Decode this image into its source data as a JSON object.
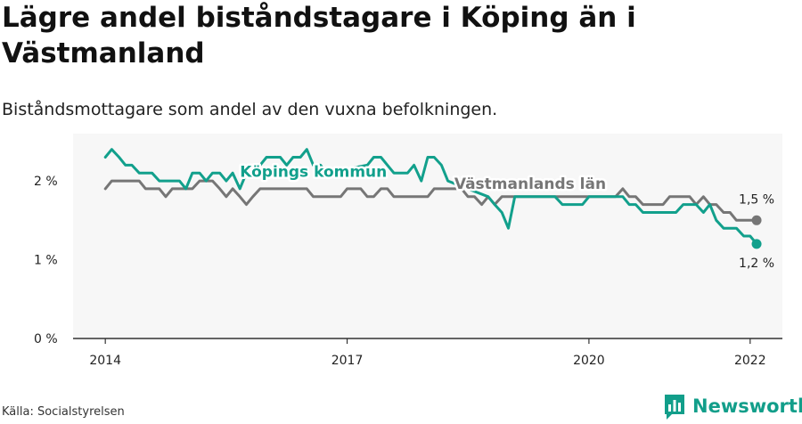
{
  "header": {
    "title": "Lägre andel biståndstagare i Köping än i Västmanland",
    "subtitle": "Biståndsmottagare som andel av den vuxna befolkningen."
  },
  "footer": {
    "source": "Källa: Socialstyrelsen",
    "brand": "Newsworthy"
  },
  "colors": {
    "koping": "#12a08c",
    "vastmanland": "#767676",
    "axis": "#333333",
    "plot_bg": "#f7f7f7",
    "brand": "#129e8a"
  },
  "chart_data": {
    "type": "line",
    "xlabel": "",
    "ylabel": "",
    "x_ticks": [
      {
        "value": 2014,
        "label": "2014"
      },
      {
        "value": 2017,
        "label": "2017"
      },
      {
        "value": 2020,
        "label": "2020"
      },
      {
        "value": 2022,
        "label": "2022"
      }
    ],
    "y_ticks": [
      {
        "value": 0,
        "label": "0 %"
      },
      {
        "value": 1,
        "label": "1 %"
      },
      {
        "value": 2,
        "label": "2 %"
      }
    ],
    "xlim": [
      2013.6,
      2022.4
    ],
    "ylim": [
      0,
      2.6
    ],
    "grid": false,
    "legend": "direct labels on lines",
    "series": [
      {
        "name": "Köpings kommun",
        "color": "#12a08c",
        "end_label": "1,2 %",
        "points": [
          [
            2014.0,
            2.3
          ],
          [
            2014.08,
            2.4
          ],
          [
            2014.17,
            2.3
          ],
          [
            2014.25,
            2.2
          ],
          [
            2014.33,
            2.2
          ],
          [
            2014.42,
            2.1
          ],
          [
            2014.5,
            2.1
          ],
          [
            2014.58,
            2.1
          ],
          [
            2014.67,
            2.0
          ],
          [
            2014.75,
            2.0
          ],
          [
            2014.83,
            2.0
          ],
          [
            2014.92,
            2.0
          ],
          [
            2015.0,
            1.9
          ],
          [
            2015.08,
            2.1
          ],
          [
            2015.17,
            2.1
          ],
          [
            2015.25,
            2.0
          ],
          [
            2015.33,
            2.1
          ],
          [
            2015.42,
            2.1
          ],
          [
            2015.5,
            2.0
          ],
          [
            2015.58,
            2.1
          ],
          [
            2015.67,
            1.9
          ],
          [
            2015.75,
            2.1
          ],
          [
            2015.83,
            2.1
          ],
          [
            2015.92,
            2.2
          ],
          [
            2016.0,
            2.3
          ],
          [
            2016.08,
            2.3
          ],
          [
            2016.17,
            2.3
          ],
          [
            2016.25,
            2.2
          ],
          [
            2016.33,
            2.3
          ],
          [
            2016.42,
            2.3
          ],
          [
            2016.5,
            2.4
          ],
          [
            2016.58,
            2.2
          ],
          [
            2016.67,
            2.2
          ],
          [
            2016.75,
            2.1
          ],
          [
            2017.25,
            2.2
          ],
          [
            2017.33,
            2.3
          ],
          [
            2017.42,
            2.3
          ],
          [
            2017.5,
            2.2
          ],
          [
            2017.58,
            2.1
          ],
          [
            2017.67,
            2.1
          ],
          [
            2017.75,
            2.1
          ],
          [
            2017.83,
            2.2
          ],
          [
            2017.92,
            2.0
          ],
          [
            2018.0,
            2.3
          ],
          [
            2018.08,
            2.3
          ],
          [
            2018.17,
            2.2
          ],
          [
            2018.25,
            2.0
          ],
          [
            2018.75,
            1.8
          ],
          [
            2018.83,
            1.7
          ],
          [
            2018.92,
            1.6
          ],
          [
            2019.0,
            1.4
          ],
          [
            2019.08,
            1.8
          ],
          [
            2019.58,
            1.8
          ],
          [
            2019.67,
            1.7
          ],
          [
            2019.75,
            1.7
          ],
          [
            2019.83,
            1.7
          ],
          [
            2019.92,
            1.7
          ],
          [
            2020.0,
            1.8
          ],
          [
            2020.42,
            1.8
          ],
          [
            2020.5,
            1.7
          ],
          [
            2020.58,
            1.7
          ],
          [
            2020.67,
            1.6
          ],
          [
            2020.75,
            1.6
          ],
          [
            2020.83,
            1.6
          ],
          [
            2020.92,
            1.6
          ],
          [
            2021.0,
            1.6
          ],
          [
            2021.08,
            1.6
          ],
          [
            2021.17,
            1.7
          ],
          [
            2021.25,
            1.7
          ],
          [
            2021.33,
            1.7
          ],
          [
            2021.42,
            1.6
          ],
          [
            2021.5,
            1.7
          ],
          [
            2021.58,
            1.5
          ],
          [
            2021.67,
            1.4
          ],
          [
            2021.75,
            1.4
          ],
          [
            2021.83,
            1.4
          ],
          [
            2021.92,
            1.3
          ],
          [
            2022.0,
            1.3
          ],
          [
            2022.08,
            1.2
          ]
        ]
      },
      {
        "name": "Västmanlands län",
        "color": "#767676",
        "end_label": "1,5 %",
        "points": [
          [
            2014.0,
            1.9
          ],
          [
            2014.08,
            2.0
          ],
          [
            2014.17,
            2.0
          ],
          [
            2014.25,
            2.0
          ],
          [
            2014.33,
            2.0
          ],
          [
            2014.42,
            2.0
          ],
          [
            2014.5,
            1.9
          ],
          [
            2014.58,
            1.9
          ],
          [
            2014.67,
            1.9
          ],
          [
            2014.75,
            1.8
          ],
          [
            2014.83,
            1.9
          ],
          [
            2014.92,
            1.9
          ],
          [
            2015.0,
            1.9
          ],
          [
            2015.08,
            1.9
          ],
          [
            2015.17,
            2.0
          ],
          [
            2015.25,
            2.0
          ],
          [
            2015.33,
            2.0
          ],
          [
            2015.42,
            1.9
          ],
          [
            2015.5,
            1.8
          ],
          [
            2015.58,
            1.9
          ],
          [
            2015.67,
            1.8
          ],
          [
            2015.75,
            1.7
          ],
          [
            2015.83,
            1.8
          ],
          [
            2015.92,
            1.9
          ],
          [
            2016.0,
            1.9
          ],
          [
            2016.08,
            1.9
          ],
          [
            2016.17,
            1.9
          ],
          [
            2016.25,
            1.9
          ],
          [
            2016.33,
            1.9
          ],
          [
            2016.42,
            1.9
          ],
          [
            2016.5,
            1.9
          ],
          [
            2016.58,
            1.8
          ],
          [
            2016.67,
            1.8
          ],
          [
            2016.75,
            1.8
          ],
          [
            2016.83,
            1.8
          ],
          [
            2016.92,
            1.8
          ],
          [
            2017.0,
            1.9
          ],
          [
            2017.08,
            1.9
          ],
          [
            2017.17,
            1.9
          ],
          [
            2017.25,
            1.8
          ],
          [
            2017.33,
            1.8
          ],
          [
            2017.42,
            1.9
          ],
          [
            2017.5,
            1.9
          ],
          [
            2017.58,
            1.8
          ],
          [
            2017.67,
            1.8
          ],
          [
            2017.75,
            1.8
          ],
          [
            2017.83,
            1.8
          ],
          [
            2017.92,
            1.8
          ],
          [
            2018.0,
            1.8
          ],
          [
            2018.08,
            1.9
          ],
          [
            2018.17,
            1.9
          ],
          [
            2018.25,
            1.9
          ],
          [
            2018.33,
            1.9
          ],
          [
            2018.42,
            1.9
          ],
          [
            2018.5,
            1.8
          ],
          [
            2018.58,
            1.8
          ],
          [
            2018.67,
            1.7
          ],
          [
            2018.75,
            1.8
          ],
          [
            2018.83,
            1.7
          ],
          [
            2018.92,
            1.8
          ],
          [
            2019.0,
            1.8
          ],
          [
            2019.08,
            1.8
          ],
          [
            2019.17,
            1.8
          ],
          [
            2019.25,
            1.8
          ],
          [
            2019.33,
            1.8
          ],
          [
            2019.42,
            1.8
          ],
          [
            2019.5,
            1.8
          ],
          [
            2019.58,
            1.8
          ],
          [
            2019.67,
            1.8
          ],
          [
            2019.75,
            1.8
          ],
          [
            2019.83,
            1.8
          ],
          [
            2019.92,
            1.8
          ],
          [
            2020.0,
            1.8
          ],
          [
            2020.08,
            1.8
          ],
          [
            2020.17,
            1.8
          ],
          [
            2020.25,
            1.8
          ],
          [
            2020.33,
            1.8
          ],
          [
            2020.42,
            1.9
          ],
          [
            2020.5,
            1.8
          ],
          [
            2020.58,
            1.8
          ],
          [
            2020.67,
            1.7
          ],
          [
            2020.75,
            1.7
          ],
          [
            2020.83,
            1.7
          ],
          [
            2020.92,
            1.7
          ],
          [
            2021.0,
            1.8
          ],
          [
            2021.08,
            1.8
          ],
          [
            2021.17,
            1.8
          ],
          [
            2021.25,
            1.8
          ],
          [
            2021.33,
            1.7
          ],
          [
            2021.42,
            1.8
          ],
          [
            2021.5,
            1.7
          ],
          [
            2021.58,
            1.7
          ],
          [
            2021.67,
            1.6
          ],
          [
            2021.75,
            1.6
          ],
          [
            2021.83,
            1.5
          ],
          [
            2021.92,
            1.5
          ],
          [
            2022.0,
            1.5
          ],
          [
            2022.08,
            1.5
          ]
        ]
      }
    ]
  }
}
